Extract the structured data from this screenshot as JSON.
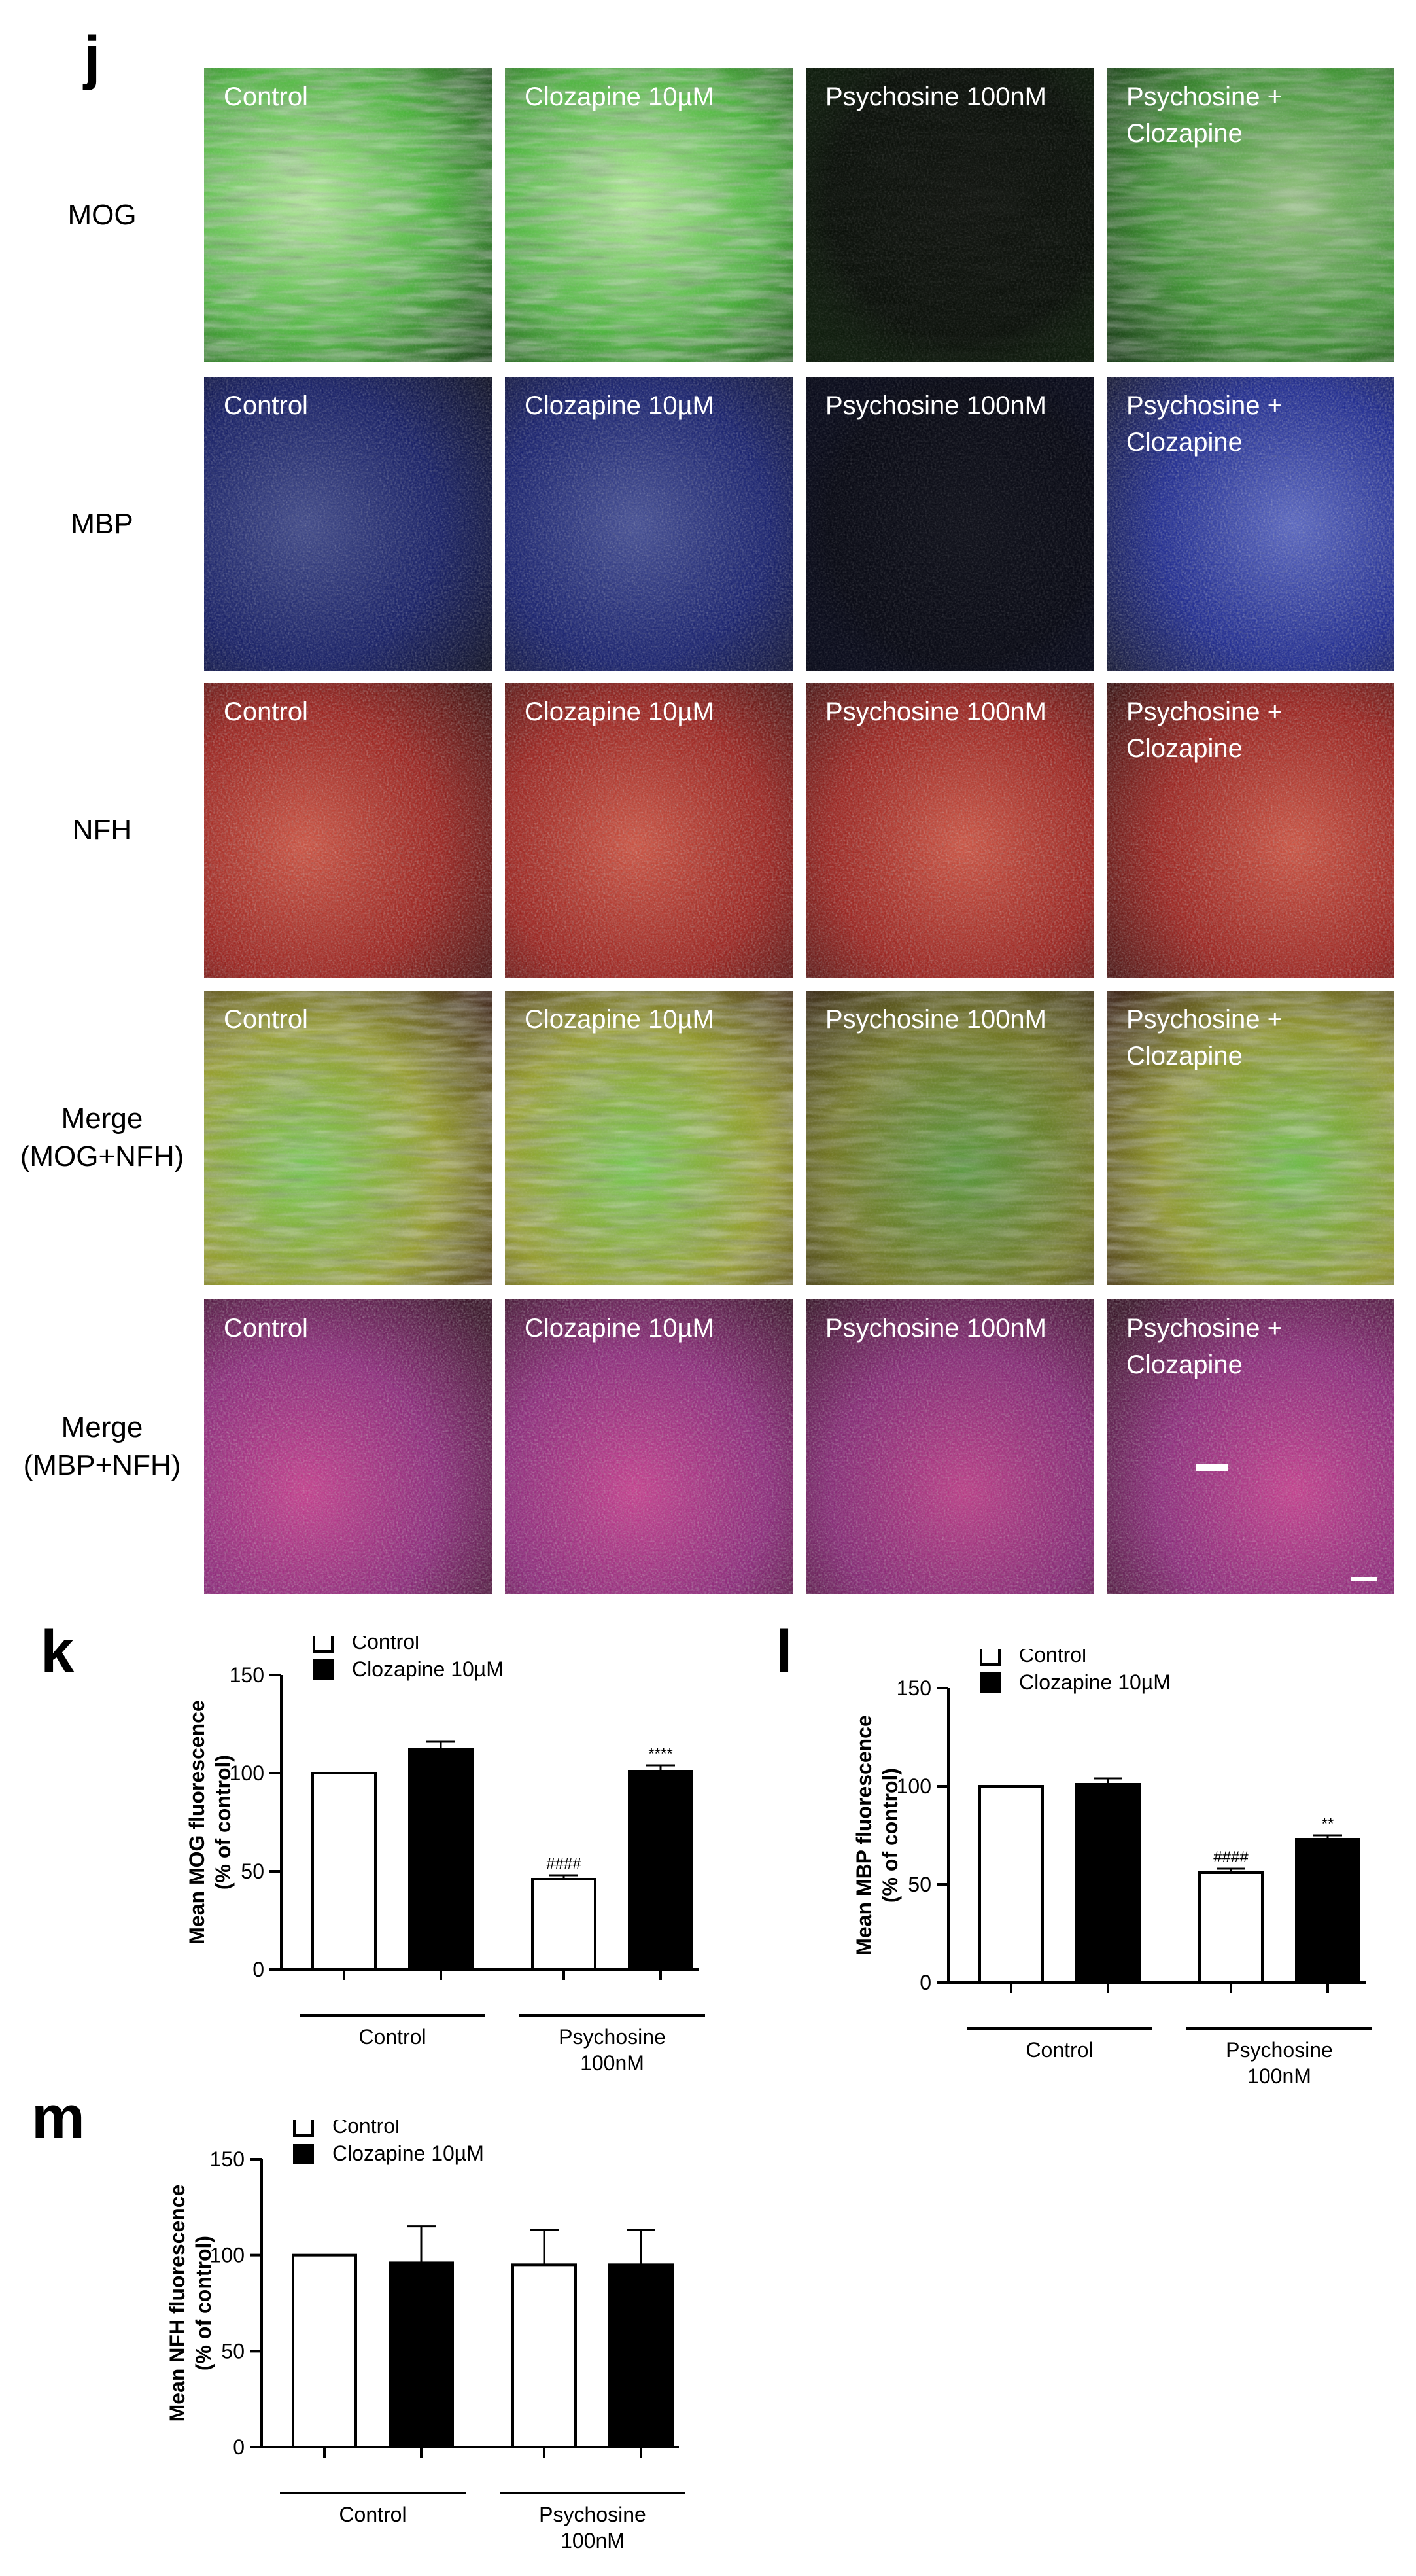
{
  "figure": {
    "panel_j_label": "j",
    "rows": [
      {
        "label_lines": [
          "MOG"
        ],
        "stain": "MOG",
        "colors": [
          "#0a3a08",
          "#4fd63c",
          "#baff9c"
        ]
      },
      {
        "label_lines": [
          "MBP"
        ],
        "stain": "MBP",
        "colors": [
          "#050828",
          "#1c2fd0",
          "#6a7dff"
        ]
      },
      {
        "label_lines": [
          "NFH"
        ],
        "stain": "NFH",
        "colors": [
          "#3a0303",
          "#d41f18",
          "#ff5b44"
        ]
      },
      {
        "label_lines": [
          "Merge",
          "(MOG+NFH)"
        ],
        "stain": "MOG+NFH",
        "colors": [
          "#3b1a05",
          "#b8c22a",
          "#7ae04a"
        ]
      },
      {
        "label_lines": [
          "Merge",
          "(MBP+NFH)"
        ],
        "stain": "MBP+NFH",
        "colors": [
          "#3a0824",
          "#b3269a",
          "#e73aa0"
        ]
      }
    ],
    "columns": [
      "Control",
      "Clozapine 10µM",
      "Psychosine 100nM",
      "Psychosine +\nClozapine"
    ],
    "signal_levels": [
      [
        1.0,
        1.0,
        0.05,
        0.8
      ],
      [
        0.55,
        0.6,
        0.08,
        0.8
      ],
      [
        0.85,
        0.85,
        0.85,
        0.85
      ],
      [
        0.95,
        0.95,
        0.7,
        0.9
      ],
      [
        0.9,
        0.9,
        0.85,
        0.9
      ]
    ]
  },
  "panels": {
    "k": {
      "label": "k"
    },
    "l": {
      "label": "l"
    },
    "m": {
      "label": "m"
    }
  },
  "chart_data": [
    {
      "panel": "k",
      "type": "bar",
      "ylabel": "Mean MOG fluorescence\n(% of control)",
      "ylim": [
        0,
        150
      ],
      "yticks": [
        0,
        50,
        100,
        150
      ],
      "legend": [
        "Control",
        "Clozapine 10µM"
      ],
      "groups": [
        "Control",
        "Psychosine\n100nM"
      ],
      "series": [
        {
          "name": "Control",
          "values": [
            100,
            46
          ],
          "errors": [
            0,
            2
          ],
          "labels": [
            "",
            "####"
          ]
        },
        {
          "name": "Clozapine 10µM",
          "values": [
            112,
            101
          ],
          "errors": [
            4,
            3
          ],
          "labels": [
            "",
            "****"
          ]
        }
      ]
    },
    {
      "panel": "l",
      "type": "bar",
      "ylabel": "Mean MBP fluorescence\n(% of control)",
      "ylim": [
        0,
        150
      ],
      "yticks": [
        0,
        50,
        100,
        150
      ],
      "legend": [
        "Control",
        "Clozapine 10µM"
      ],
      "groups": [
        "Control",
        "Psychosine\n100nM"
      ],
      "series": [
        {
          "name": "Control",
          "values": [
            100,
            56
          ],
          "errors": [
            0,
            2
          ],
          "labels": [
            "",
            "####"
          ]
        },
        {
          "name": "Clozapine 10µM",
          "values": [
            101,
            73
          ],
          "errors": [
            3,
            2
          ],
          "labels": [
            "",
            "**"
          ]
        }
      ]
    },
    {
      "panel": "m",
      "type": "bar",
      "ylabel": "Mean NFH fluorescence\n(% of control)",
      "ylim": [
        0,
        150
      ],
      "yticks": [
        0,
        50,
        100,
        150
      ],
      "legend": [
        "Control",
        "Clozapine 10µM"
      ],
      "groups": [
        "Control",
        "Psychosine\n100nM"
      ],
      "series": [
        {
          "name": "Control",
          "values": [
            100,
            95
          ],
          "errors": [
            0,
            18
          ],
          "labels": [
            "",
            ""
          ]
        },
        {
          "name": "Clozapine 10µM",
          "values": [
            96,
            95
          ],
          "errors": [
            19,
            18
          ],
          "labels": [
            "",
            ""
          ]
        }
      ]
    }
  ]
}
